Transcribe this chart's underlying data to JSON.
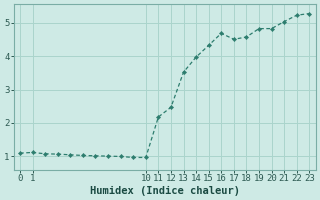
{
  "x": [
    0,
    1,
    2,
    3,
    4,
    5,
    6,
    7,
    8,
    9,
    10,
    11,
    12,
    13,
    14,
    15,
    16,
    17,
    18,
    19,
    20,
    21,
    22,
    23
  ],
  "y": [
    1.1,
    1.12,
    1.08,
    1.07,
    1.05,
    1.03,
    1.02,
    1.01,
    1.0,
    0.97,
    0.97,
    2.18,
    2.47,
    3.52,
    3.97,
    4.32,
    4.68,
    4.5,
    4.57,
    4.82,
    4.82,
    5.03,
    5.22,
    5.27
  ],
  "bg_color": "#ceeae5",
  "line_color": "#2d7d6e",
  "marker_color": "#2d7d6e",
  "xlabel": "Humidex (Indice chaleur)",
  "xlim_min": -0.5,
  "xlim_max": 23.5,
  "ylim_min": 0.6,
  "ylim_max": 5.55,
  "xticks": [
    0,
    1,
    10,
    11,
    12,
    13,
    14,
    15,
    16,
    17,
    18,
    19,
    20,
    21,
    22,
    23
  ],
  "yticks": [
    1,
    2,
    3,
    4,
    5
  ],
  "ytick_labels": [
    "1",
    "2",
    "3",
    "4",
    "5"
  ],
  "grid_color": "#aad4cc",
  "spine_color": "#7aada5",
  "tick_color": "#2d5a52",
  "font_color": "#1a4a42",
  "font_size": 6.5,
  "xlabel_fontsize": 7.5
}
